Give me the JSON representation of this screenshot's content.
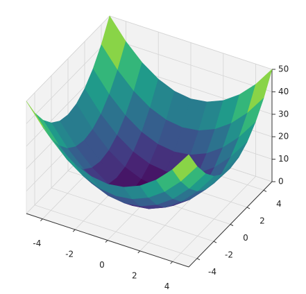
{
  "chart_data": {
    "type": "surface",
    "colormap": "viridis",
    "x": [
      -5,
      -4,
      -3,
      -2,
      -1,
      0,
      1,
      2,
      3,
      4,
      5
    ],
    "y": [
      -5,
      -4,
      -3,
      -2,
      -1,
      0,
      1,
      2,
      3,
      4,
      5
    ],
    "z": [
      [
        50,
        41,
        34,
        29,
        26,
        25,
        26,
        29,
        34,
        41,
        50
      ],
      [
        41,
        32,
        25,
        20,
        17,
        16,
        17,
        20,
        25,
        32,
        41
      ],
      [
        34,
        25,
        18,
        13,
        10,
        9,
        10,
        13,
        18,
        25,
        34
      ],
      [
        29,
        20,
        13,
        8,
        5,
        4,
        5,
        8,
        13,
        20,
        29
      ],
      [
        26,
        17,
        10,
        5,
        2,
        1,
        2,
        5,
        10,
        17,
        26
      ],
      [
        25,
        16,
        9,
        4,
        1,
        0,
        1,
        4,
        9,
        16,
        25
      ],
      [
        26,
        17,
        10,
        5,
        2,
        1,
        2,
        5,
        10,
        17,
        26
      ],
      [
        29,
        20,
        13,
        8,
        5,
        4,
        5,
        8,
        13,
        20,
        29
      ],
      [
        34,
        25,
        18,
        13,
        10,
        9,
        10,
        13,
        18,
        25,
        34
      ],
      [
        41,
        32,
        25,
        20,
        17,
        16,
        17,
        20,
        25,
        32,
        41
      ],
      [
        50,
        41,
        34,
        29,
        26,
        25,
        26,
        29,
        34,
        41,
        50
      ]
    ],
    "xlim": [
      -5,
      5
    ],
    "ylim": [
      -5,
      5
    ],
    "zlim": [
      0,
      50
    ],
    "xticks": [
      -4,
      -2,
      0,
      2,
      4
    ],
    "yticks": [
      -4,
      -2,
      0,
      2,
      4
    ],
    "zticks": [
      0,
      10,
      20,
      30,
      40,
      50
    ],
    "grid": true
  }
}
